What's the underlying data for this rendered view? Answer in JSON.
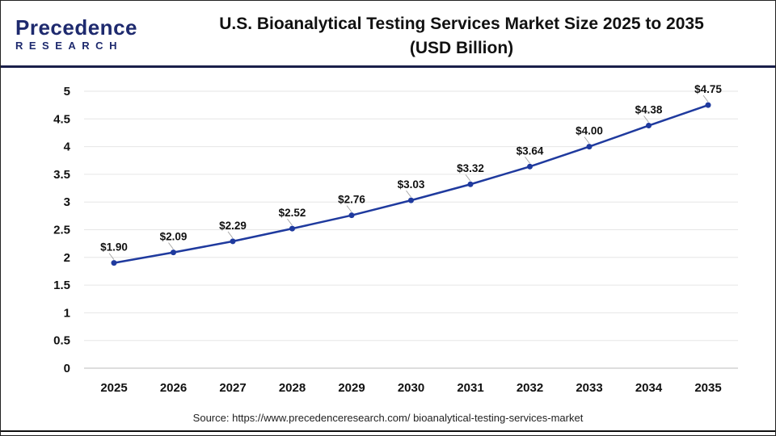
{
  "logo": {
    "line1": "Precedence",
    "line2": "RESEARCH"
  },
  "chart_data": {
    "type": "line",
    "title": "U.S. Bioanalytical Testing Services Market Size 2025 to 2035",
    "subtitle": "(USD Billion)",
    "xlabel": "",
    "ylabel": "",
    "categories": [
      "2025",
      "2026",
      "2027",
      "2028",
      "2029",
      "2030",
      "2031",
      "2032",
      "2033",
      "2034",
      "2035"
    ],
    "values": [
      1.9,
      2.09,
      2.29,
      2.52,
      2.76,
      3.03,
      3.32,
      3.64,
      4.0,
      4.38,
      4.75
    ],
    "data_labels": [
      "$1.90",
      "$2.09",
      "$2.29",
      "$2.52",
      "$2.76",
      "$3.03",
      "$3.32",
      "$3.64",
      "$4.00",
      "$4.38",
      "$4.75"
    ],
    "ylim": [
      0,
      5
    ],
    "yticks": [
      "0",
      "0.5",
      "1",
      "1.5",
      "2",
      "2.5",
      "3",
      "3.5",
      "4",
      "4.5",
      "5"
    ],
    "grid": true,
    "line_color": "#1f3a9e"
  },
  "source": "Source: https://www.precedenceresearch.com/ bioanalytical-testing-services-market"
}
